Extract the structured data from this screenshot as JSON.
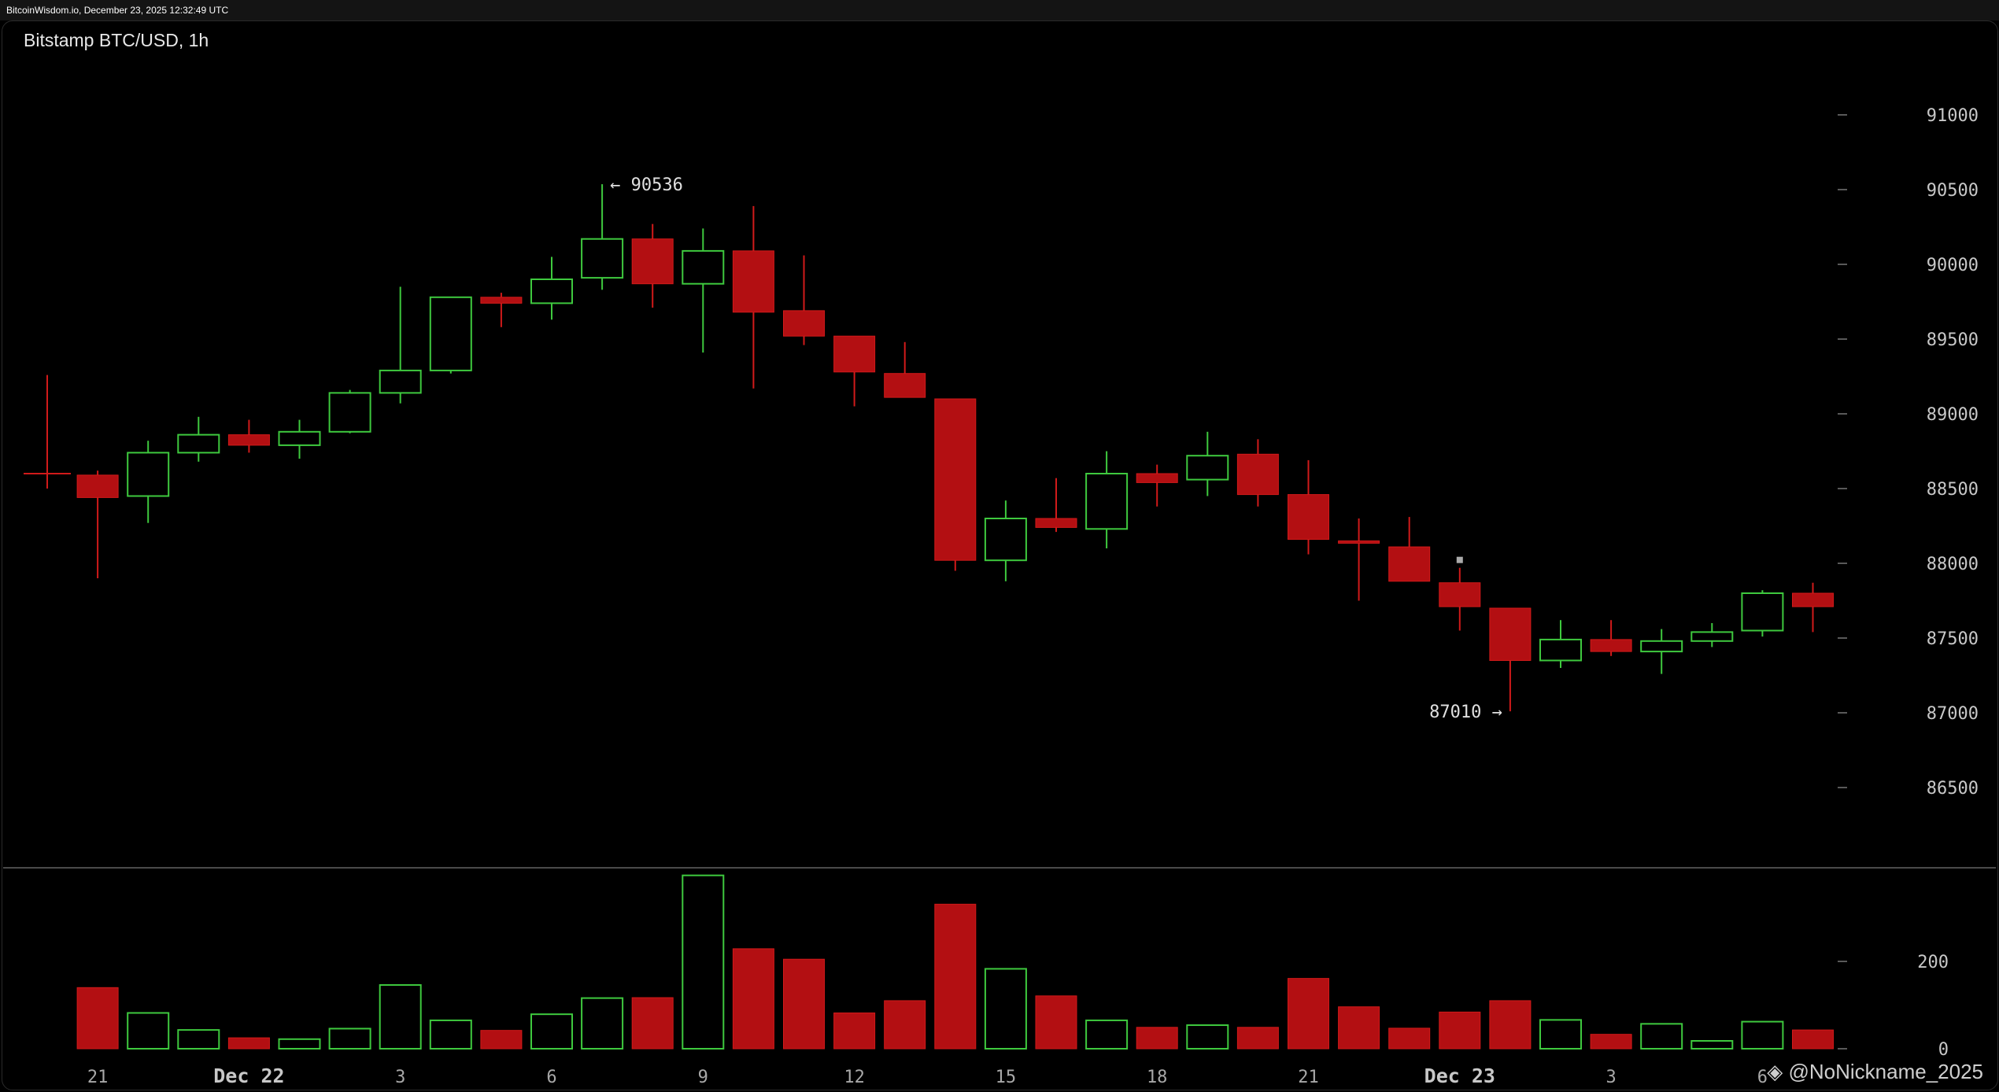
{
  "header": {
    "source_text": "BitcoinWisdom.io, December 23, 2025 12:32:49 UTC"
  },
  "watermark": "@NoNickname_2025",
  "colors": {
    "up": "#3ec93e",
    "down": "#b30f12",
    "down_edge": "#d11a1a",
    "bg": "#000000",
    "separator": "#4a4a4a"
  },
  "chart_data": {
    "type": "candlestick",
    "title": "Bitstamp BTC/USD, 1h",
    "price_ticks": [
      91000,
      90500,
      90000,
      89500,
      89000,
      88500,
      88000,
      87500,
      87000,
      86500
    ],
    "volume_ticks": [
      200,
      0
    ],
    "price_ylim": [
      86070,
      91620
    ],
    "volume_ylim": [
      0,
      400
    ],
    "x_labels": [
      {
        "index": 1,
        "label": "21",
        "bold": false
      },
      {
        "index": 4,
        "label": "Dec 22",
        "bold": true
      },
      {
        "index": 7,
        "label": "3",
        "bold": false
      },
      {
        "index": 10,
        "label": "6",
        "bold": false
      },
      {
        "index": 13,
        "label": "9",
        "bold": false
      },
      {
        "index": 16,
        "label": "12",
        "bold": false
      },
      {
        "index": 19,
        "label": "15",
        "bold": false
      },
      {
        "index": 22,
        "label": "18",
        "bold": false
      },
      {
        "index": 25,
        "label": "21",
        "bold": false
      },
      {
        "index": 28,
        "label": "Dec 23",
        "bold": true
      },
      {
        "index": 31,
        "label": "3",
        "bold": false
      },
      {
        "index": 34,
        "label": "6",
        "bold": false
      }
    ],
    "annotations": [
      {
        "index": 11,
        "price": 90536,
        "text": "← 90536",
        "side": "right"
      },
      {
        "index": 29,
        "price": 87010,
        "text": "87010 →",
        "side": "left"
      }
    ],
    "candles": [
      {
        "o": 88600,
        "h": 89260,
        "l": 88500,
        "c": 88600,
        "v": 1
      },
      {
        "o": 88590,
        "h": 88620,
        "l": 87900,
        "c": 88440,
        "v": 140
      },
      {
        "o": 88450,
        "h": 88820,
        "l": 88270,
        "c": 88740,
        "v": 82
      },
      {
        "o": 88740,
        "h": 88980,
        "l": 88680,
        "c": 88860,
        "v": 43
      },
      {
        "o": 88860,
        "h": 88960,
        "l": 88740,
        "c": 88790,
        "v": 25
      },
      {
        "o": 88790,
        "h": 88960,
        "l": 88700,
        "c": 88880,
        "v": 22
      },
      {
        "o": 88880,
        "h": 89160,
        "l": 88870,
        "c": 89140,
        "v": 46
      },
      {
        "o": 89140,
        "h": 89850,
        "l": 89070,
        "c": 89290,
        "v": 146
      },
      {
        "o": 89290,
        "h": 89780,
        "l": 89270,
        "c": 89780,
        "v": 65
      },
      {
        "o": 89780,
        "h": 89810,
        "l": 89580,
        "c": 89740,
        "v": 42
      },
      {
        "o": 89740,
        "h": 90050,
        "l": 89630,
        "c": 89900,
        "v": 79
      },
      {
        "o": 89910,
        "h": 90536,
        "l": 89830,
        "c": 90170,
        "v": 116
      },
      {
        "o": 90170,
        "h": 90270,
        "l": 89710,
        "c": 89870,
        "v": 117
      },
      {
        "o": 89870,
        "h": 90240,
        "l": 89410,
        "c": 90090,
        "v": 397
      },
      {
        "o": 90090,
        "h": 90390,
        "l": 89170,
        "c": 89680,
        "v": 229
      },
      {
        "o": 89690,
        "h": 90060,
        "l": 89460,
        "c": 89520,
        "v": 205
      },
      {
        "o": 89520,
        "h": 89520,
        "l": 89050,
        "c": 89280,
        "v": 82
      },
      {
        "o": 89270,
        "h": 89480,
        "l": 89110,
        "c": 89110,
        "v": 110
      },
      {
        "o": 89100,
        "h": 89100,
        "l": 87950,
        "c": 88020,
        "v": 331
      },
      {
        "o": 88020,
        "h": 88420,
        "l": 87880,
        "c": 88300,
        "v": 183
      },
      {
        "o": 88300,
        "h": 88570,
        "l": 88210,
        "c": 88240,
        "v": 121
      },
      {
        "o": 88230,
        "h": 88750,
        "l": 88100,
        "c": 88600,
        "v": 65
      },
      {
        "o": 88600,
        "h": 88660,
        "l": 88380,
        "c": 88540,
        "v": 49
      },
      {
        "o": 88560,
        "h": 88880,
        "l": 88450,
        "c": 88720,
        "v": 54
      },
      {
        "o": 88730,
        "h": 88830,
        "l": 88380,
        "c": 88460,
        "v": 49
      },
      {
        "o": 88460,
        "h": 88690,
        "l": 88060,
        "c": 88160,
        "v": 161
      },
      {
        "o": 88150,
        "h": 88300,
        "l": 87750,
        "c": 88150,
        "v": 96
      },
      {
        "o": 88110,
        "h": 88310,
        "l": 87880,
        "c": 87880,
        "v": 47
      },
      {
        "o": 87870,
        "h": 87970,
        "l": 87550,
        "c": 87710,
        "v": 84
      },
      {
        "o": 87700,
        "h": 87700,
        "l": 87010,
        "c": 87350,
        "v": 110
      },
      {
        "o": 87350,
        "h": 87620,
        "l": 87300,
        "c": 87490,
        "v": 66
      },
      {
        "o": 87490,
        "h": 87620,
        "l": 87380,
        "c": 87410,
        "v": 33
      },
      {
        "o": 87410,
        "h": 87560,
        "l": 87260,
        "c": 87480,
        "v": 57
      },
      {
        "o": 87480,
        "h": 87600,
        "l": 87440,
        "c": 87540,
        "v": 18
      },
      {
        "o": 87550,
        "h": 87820,
        "l": 87510,
        "c": 87800,
        "v": 62
      },
      {
        "o": 87800,
        "h": 87870,
        "l": 87540,
        "c": 87710,
        "v": 43
      }
    ]
  }
}
